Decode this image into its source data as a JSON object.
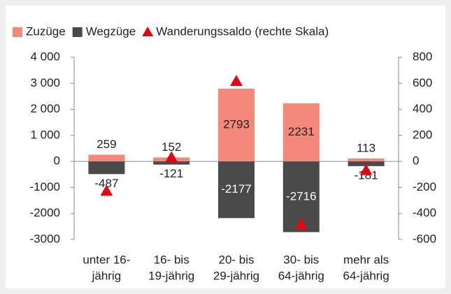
{
  "chart_data": {
    "type": "bar",
    "categories": [
      [
        "unter 16-",
        "jährig"
      ],
      [
        "16- bis",
        "19-jährig"
      ],
      [
        "20- bis",
        "29-jährig"
      ],
      [
        "30- bis",
        "64-jährig"
      ],
      [
        "mehr als",
        "64-jährig"
      ]
    ],
    "series": [
      {
        "name": "Zuzüge",
        "color": "#f4887a",
        "values": [
          259,
          152,
          2793,
          2231,
          113
        ]
      },
      {
        "name": "Wegzüge",
        "color": "#4a4a4a",
        "values": [
          -487,
          -121,
          -2177,
          -2716,
          -181
        ]
      },
      {
        "name": "Wanderungssaldo (rechte Skala)",
        "color": "#e30613",
        "axis": "y2",
        "marker": "triangle",
        "values": [
          -228,
          31,
          616,
          -485,
          -68
        ]
      }
    ],
    "ylim": [
      -3000,
      4000
    ],
    "yticks": [
      {
        "value": 4000,
        "label": "4 000"
      },
      {
        "value": 3000,
        "label": "3 000"
      },
      {
        "value": 2000,
        "label": "2 000"
      },
      {
        "value": 1000,
        "label": "1 000"
      },
      0,
      -1000,
      -2000,
      -3000
    ],
    "y2lim": [
      -600,
      800
    ],
    "y2ticks": [
      800,
      600,
      400,
      200,
      0,
      -200,
      -400,
      -600
    ],
    "legend": "top"
  }
}
